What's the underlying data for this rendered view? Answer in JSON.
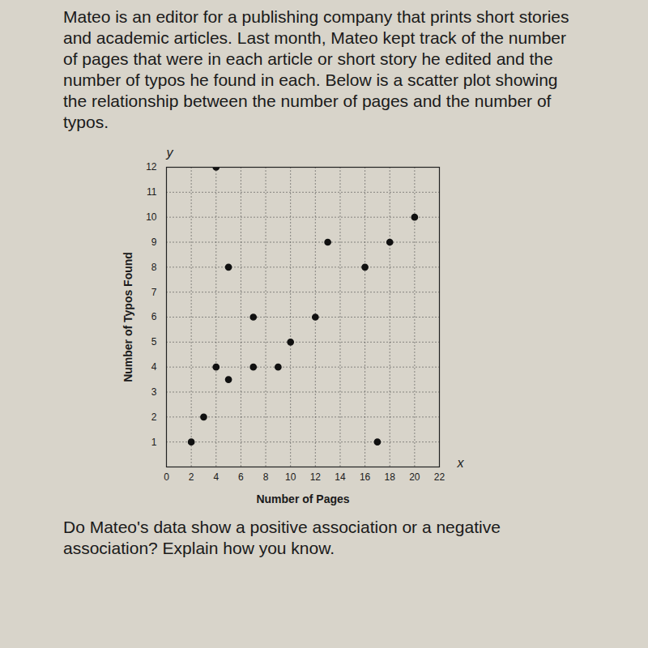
{
  "chart_data": {
    "type": "scatter",
    "title": "Mateo is an editor for a publishing company that prints short stories and academic articles. Last month, Mateo kept track of the number of pages that were in each article or short story he edited and the number of typos he found in each. Below is a scatter plot showing the relationship between the number of pages and the number of typos.",
    "annotations": [
      "Do Mateo's data show a positive association or a negative association? Explain how you know."
    ],
    "x_axis_letter": "x",
    "y_axis_letter": "y",
    "xlabel": "Number of Pages",
    "ylabel": "Number of Typos Found",
    "x": [
      2,
      3,
      4,
      4,
      5,
      5,
      7,
      7,
      9,
      10,
      12,
      13,
      16,
      17,
      18,
      20
    ],
    "values": [
      1,
      2,
      12,
      4,
      3.5,
      8,
      6,
      4,
      4,
      5,
      6,
      9,
      8,
      1,
      9,
      10
    ],
    "color": "#111111",
    "marker": "circle",
    "xlim": [
      0,
      22
    ],
    "xticks": [
      0,
      2,
      4,
      6,
      8,
      10,
      12,
      14,
      16,
      18,
      20,
      22
    ],
    "ylim": [
      0,
      12
    ],
    "yticks": [
      1,
      2,
      3,
      4,
      5,
      6,
      7,
      8,
      9,
      10,
      11,
      12
    ],
    "grid": true
  }
}
